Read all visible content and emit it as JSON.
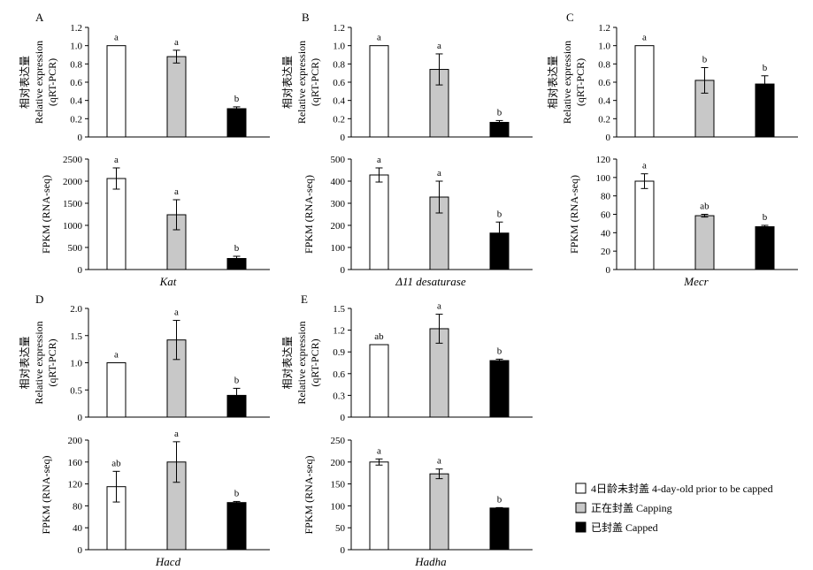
{
  "colors": {
    "prior": "#ffffff",
    "capping": "#c8c8c8",
    "capped": "#000000",
    "stroke": "#000000"
  },
  "legend": [
    {
      "key": "prior",
      "label": "4日龄未封盖 4-day-old prior to be capped"
    },
    {
      "key": "capping",
      "label": "正在封盖 Capping"
    },
    {
      "key": "capped",
      "label": "已封盖 Capped"
    }
  ],
  "chart_data": [
    {
      "panel": "A",
      "gene": "Kat",
      "type": "bar",
      "ylabel_cn": "相对表达量",
      "ylabel_en": "Relative expression",
      "ylabel_sub": "(qRT-PCR)",
      "yticks": [
        "0",
        "0.2",
        "0.4",
        "0.6",
        "0.8",
        "1.0",
        "1.2"
      ],
      "ylim": [
        0,
        1.2
      ],
      "values": [
        1.0,
        0.88,
        0.31
      ],
      "errors": [
        0,
        0.07,
        0.02
      ],
      "letters": [
        "a",
        "a",
        "b"
      ]
    },
    {
      "panel": "",
      "gene": "Kat",
      "type": "bar",
      "ylabel_en": "FPKM (RNA-seq)",
      "yticks": [
        "0",
        "500",
        "1000",
        "1500",
        "2000",
        "2500"
      ],
      "ylim": [
        0,
        2500
      ],
      "values": [
        2060,
        1240,
        250
      ],
      "errors": [
        240,
        340,
        50
      ],
      "letters": [
        "a",
        "a",
        "b"
      ]
    },
    {
      "panel": "B",
      "gene": "Δ11 desaturase",
      "type": "bar",
      "ylabel_cn": "相对表达量",
      "ylabel_en": "Relative expression",
      "ylabel_sub": "(qRT-PCR)",
      "yticks": [
        "0",
        "0.2",
        "0.4",
        "0.6",
        "0.8",
        "1.0",
        "1.2"
      ],
      "ylim": [
        0,
        1.2
      ],
      "values": [
        1.0,
        0.74,
        0.16
      ],
      "errors": [
        0,
        0.17,
        0.02
      ],
      "letters": [
        "a",
        "a",
        "b"
      ]
    },
    {
      "panel": "",
      "gene": "Δ11 desaturase",
      "type": "bar",
      "ylabel_en": "FPKM (RNA-seq)",
      "yticks": [
        "0",
        "100",
        "200",
        "300",
        "400",
        "500"
      ],
      "ylim": [
        0,
        500
      ],
      "values": [
        428,
        328,
        165
      ],
      "errors": [
        32,
        72,
        50
      ],
      "letters": [
        "a",
        "a",
        "b"
      ]
    },
    {
      "panel": "C",
      "gene": "Mecr",
      "type": "bar",
      "ylabel_cn": "相对表达量",
      "ylabel_en": "Relative expression",
      "ylabel_sub": "(qRT-PCR)",
      "yticks": [
        "0",
        "0.2",
        "0.4",
        "0.6",
        "0.8",
        "1.0",
        "1.2"
      ],
      "ylim": [
        0,
        1.2
      ],
      "values": [
        1.0,
        0.62,
        0.58
      ],
      "errors": [
        0,
        0.14,
        0.09
      ],
      "letters": [
        "a",
        "b",
        "b"
      ]
    },
    {
      "panel": "",
      "gene": "Mecr",
      "type": "bar",
      "ylabel_en": "FPKM (RNA-seq)",
      "yticks": [
        "0",
        "20",
        "40",
        "60",
        "80",
        "100",
        "120"
      ],
      "ylim": [
        0,
        120
      ],
      "values": [
        96,
        58.5,
        46.5
      ],
      "errors": [
        8,
        1.5,
        1.5
      ],
      "letters": [
        "a",
        "ab",
        "b"
      ]
    },
    {
      "panel": "D",
      "gene": "Hacd",
      "type": "bar",
      "ylabel_cn": "相对表达量",
      "ylabel_en": "Relative expression",
      "ylabel_sub": "(qRT-PCR)",
      "yticks": [
        "0",
        "0.5",
        "1.0",
        "1.5",
        "2.0"
      ],
      "ylim": [
        0,
        2.0
      ],
      "values": [
        1.0,
        1.42,
        0.4
      ],
      "errors": [
        0,
        0.36,
        0.13
      ],
      "letters": [
        "a",
        "a",
        "b"
      ]
    },
    {
      "panel": "",
      "gene": "Hacd",
      "type": "bar",
      "ylabel_en": "FPKM (RNA-seq)",
      "yticks": [
        "0",
        "40",
        "80",
        "120",
        "160",
        "200"
      ],
      "ylim": [
        0,
        200
      ],
      "values": [
        115,
        160,
        86
      ],
      "errors": [
        28,
        37,
        2
      ],
      "letters": [
        "ab",
        "a",
        "b"
      ]
    },
    {
      "panel": "E",
      "gene": "Hadha",
      "type": "bar",
      "ylabel_cn": "相对表达量",
      "ylabel_en": "Relative expression",
      "ylabel_sub": "(qRT-PCR)",
      "yticks": [
        "0",
        "0.3",
        "0.6",
        "0.9",
        "1.2",
        "1.5"
      ],
      "ylim": [
        0,
        1.5
      ],
      "values": [
        1.0,
        1.22,
        0.78
      ],
      "errors": [
        0,
        0.2,
        0.02
      ],
      "letters": [
        "ab",
        "a",
        "b"
      ]
    },
    {
      "panel": "",
      "gene": "Hadha",
      "type": "bar",
      "ylabel_en": "FPKM (RNA-seq)",
      "yticks": [
        "0",
        "50",
        "100",
        "150",
        "200",
        "250"
      ],
      "ylim": [
        0,
        250
      ],
      "values": [
        200,
        173,
        95
      ],
      "errors": [
        7,
        11,
        1
      ],
      "letters": [
        "a",
        "a",
        "b"
      ]
    }
  ]
}
